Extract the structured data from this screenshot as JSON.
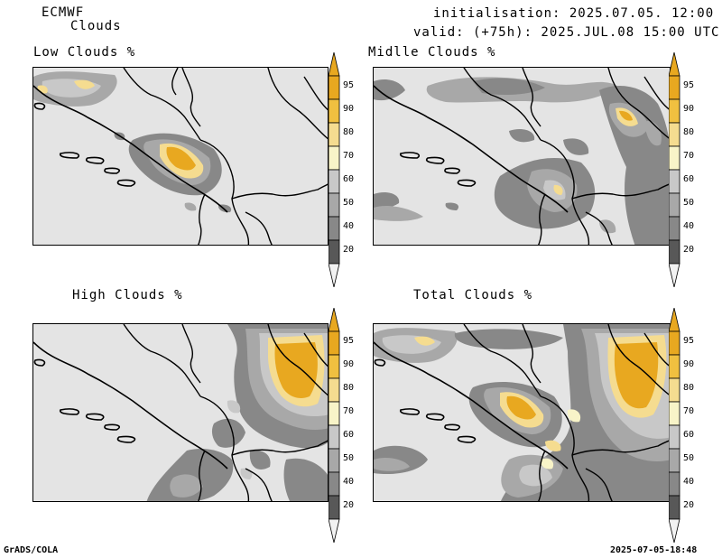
{
  "header": {
    "model": "ECMWF",
    "product": "Clouds",
    "initialisation": "initialisation: 2025.07.05. 12:00 UTC",
    "valid": "valid: (+75h): 2025.JUL.08 15:00 UTC"
  },
  "panels": [
    {
      "id": "low",
      "title": "Low Clouds %"
    },
    {
      "id": "middle",
      "title": "Midlle Clouds %"
    },
    {
      "id": "high",
      "title": "High Clouds %"
    },
    {
      "id": "total",
      "title": "Total Clouds %"
    }
  ],
  "colorbar": {
    "levels": [
      "95",
      "90",
      "80",
      "70",
      "60",
      "50",
      "40",
      "20"
    ],
    "colors": [
      "#e8a820",
      "#f0c040",
      "#f5dc90",
      "#f8f4c8",
      "#c8c8c8",
      "#a8a8a8",
      "#888888",
      "#585858"
    ],
    "top_color": "#e8a820",
    "bottom_color": "#f2f2f2"
  },
  "footer": {
    "left": "GrADS/COLA",
    "right": "2025-07-05-18:48"
  },
  "colors": {
    "background": "#e4e4e4",
    "border": "#000000"
  }
}
